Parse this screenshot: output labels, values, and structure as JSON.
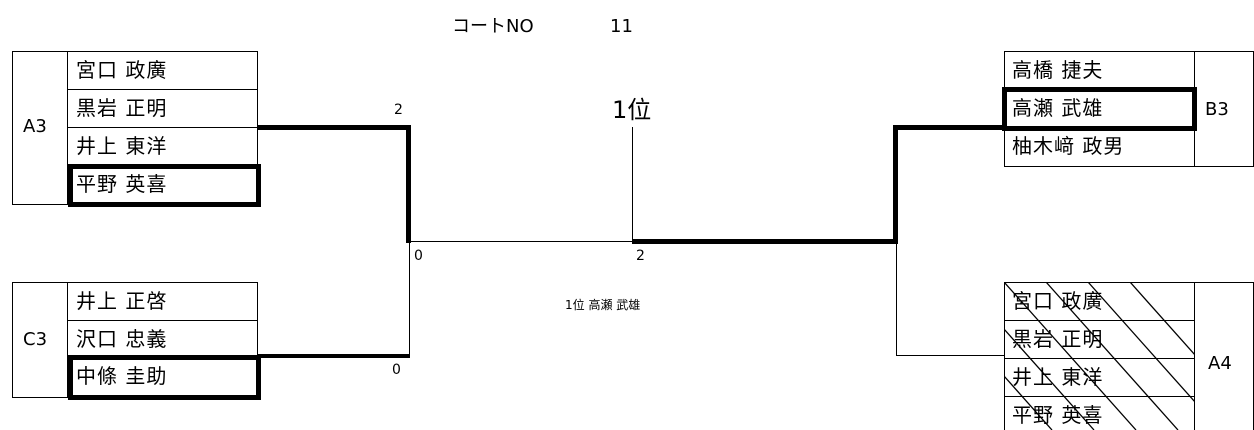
{
  "header": {
    "court_label": "コートNO",
    "court_number": "11"
  },
  "final": {
    "place_label": "1位",
    "winner_text": "1位  高瀬  武雄"
  },
  "groups": {
    "a3": {
      "label": "A3",
      "names": [
        "宮口  政廣",
        "黒岩  正明",
        "井上  東洋",
        "平野  英喜"
      ]
    },
    "c3": {
      "label": "C3",
      "names": [
        "井上  正啓",
        "沢口  忠義",
        "中條  圭助"
      ]
    },
    "b3": {
      "label": "B3",
      "names": [
        "高橋  捷夫",
        "高瀬  武雄",
        "柚木﨑  政男"
      ]
    },
    "a4": {
      "label": "A4",
      "names": [
        "宮口  政廣",
        "黒岩  正明",
        "井上  東洋",
        "平野  英喜"
      ]
    }
  },
  "scores": {
    "a3": "2",
    "semi_left": "0",
    "c3": "0",
    "final_right": "2"
  }
}
